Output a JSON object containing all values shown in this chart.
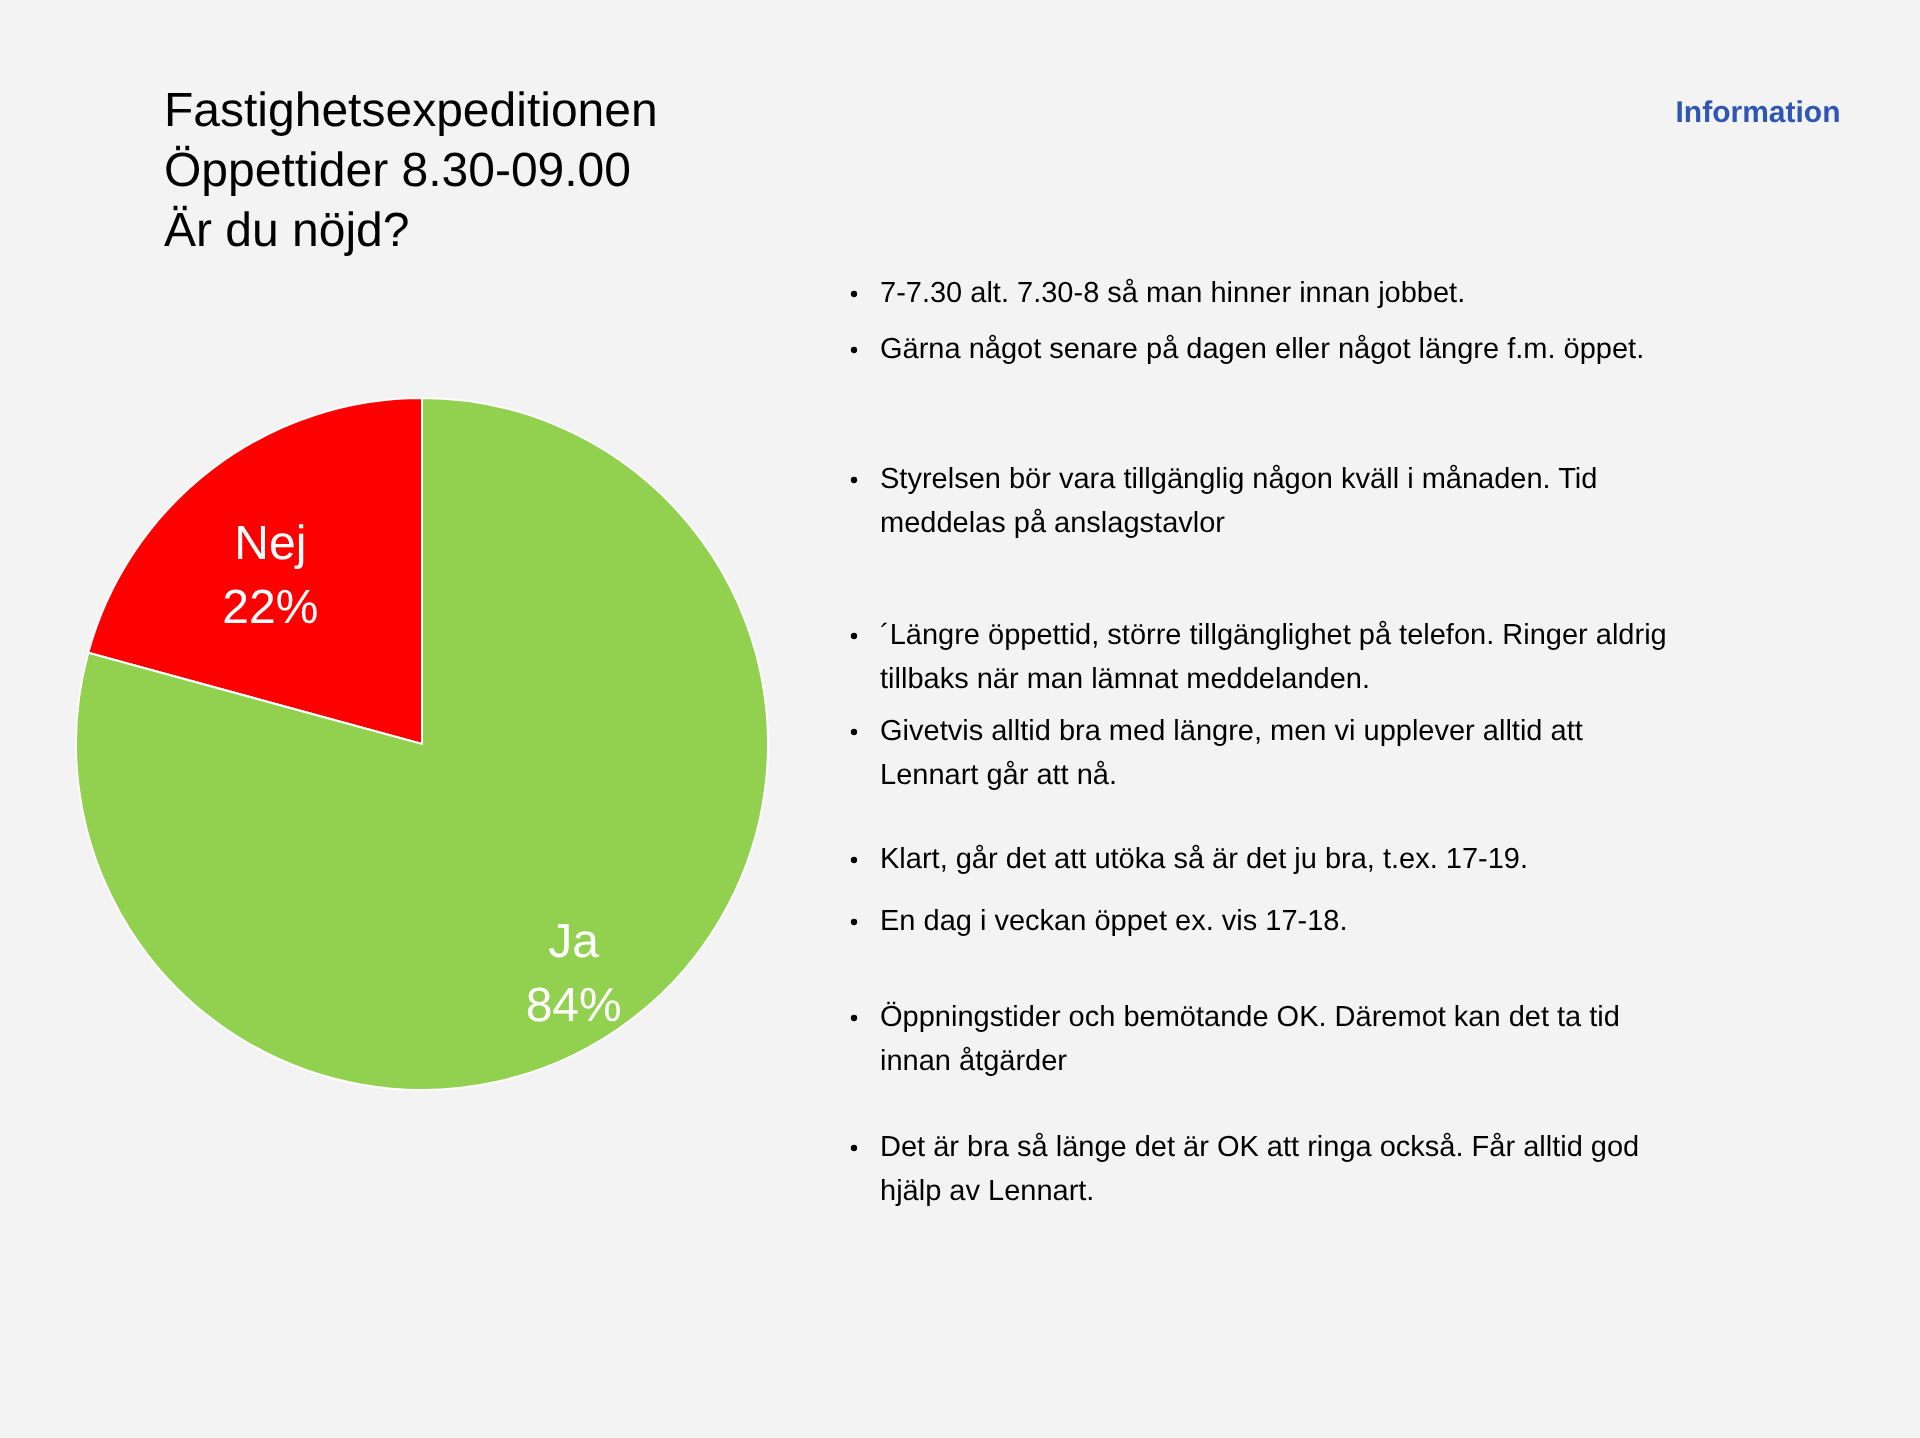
{
  "chart_data": {
    "type": "pie",
    "title": "Fastighetsexpeditionen\nÖppettider 8.30-09.00\nÄr du nöjd?",
    "categories": [
      "Nej",
      "Ja"
    ],
    "values": [
      22,
      84
    ],
    "colors": [
      "#ff0000",
      "#92d050"
    ],
    "value_labels": [
      "22%",
      "84%"
    ],
    "annotations": [
      "Information",
      "7-7.30 alt. 7.30-8 så man hinner innan jobbet.",
      "Gärna något senare på dagen eller något längre f.m. öppet.",
      "Styrelsen bör vara tillgänglig någon kväll i månaden. Tid\nmeddelas på anslagstavlor",
      "´Längre öppettid, större tillgänglighet på telefon. Ringer aldrig\ntillbaks när man lämnat meddelanden.",
      "Givetvis alltid bra med längre, men vi upplever alltid att\nLennart går att nå.",
      "Klart, går det att utöka så är det ju bra, t.ex. 17-19.",
      "En dag i veckan öppet ex. vis 17-18.",
      "Öppningstider och bemötande OK. Däremot kan det ta tid\ninnan åtgärder",
      "Det är bra så länge det är OK att ringa också. Får alltid god\nhjälp av Lennart."
    ]
  }
}
